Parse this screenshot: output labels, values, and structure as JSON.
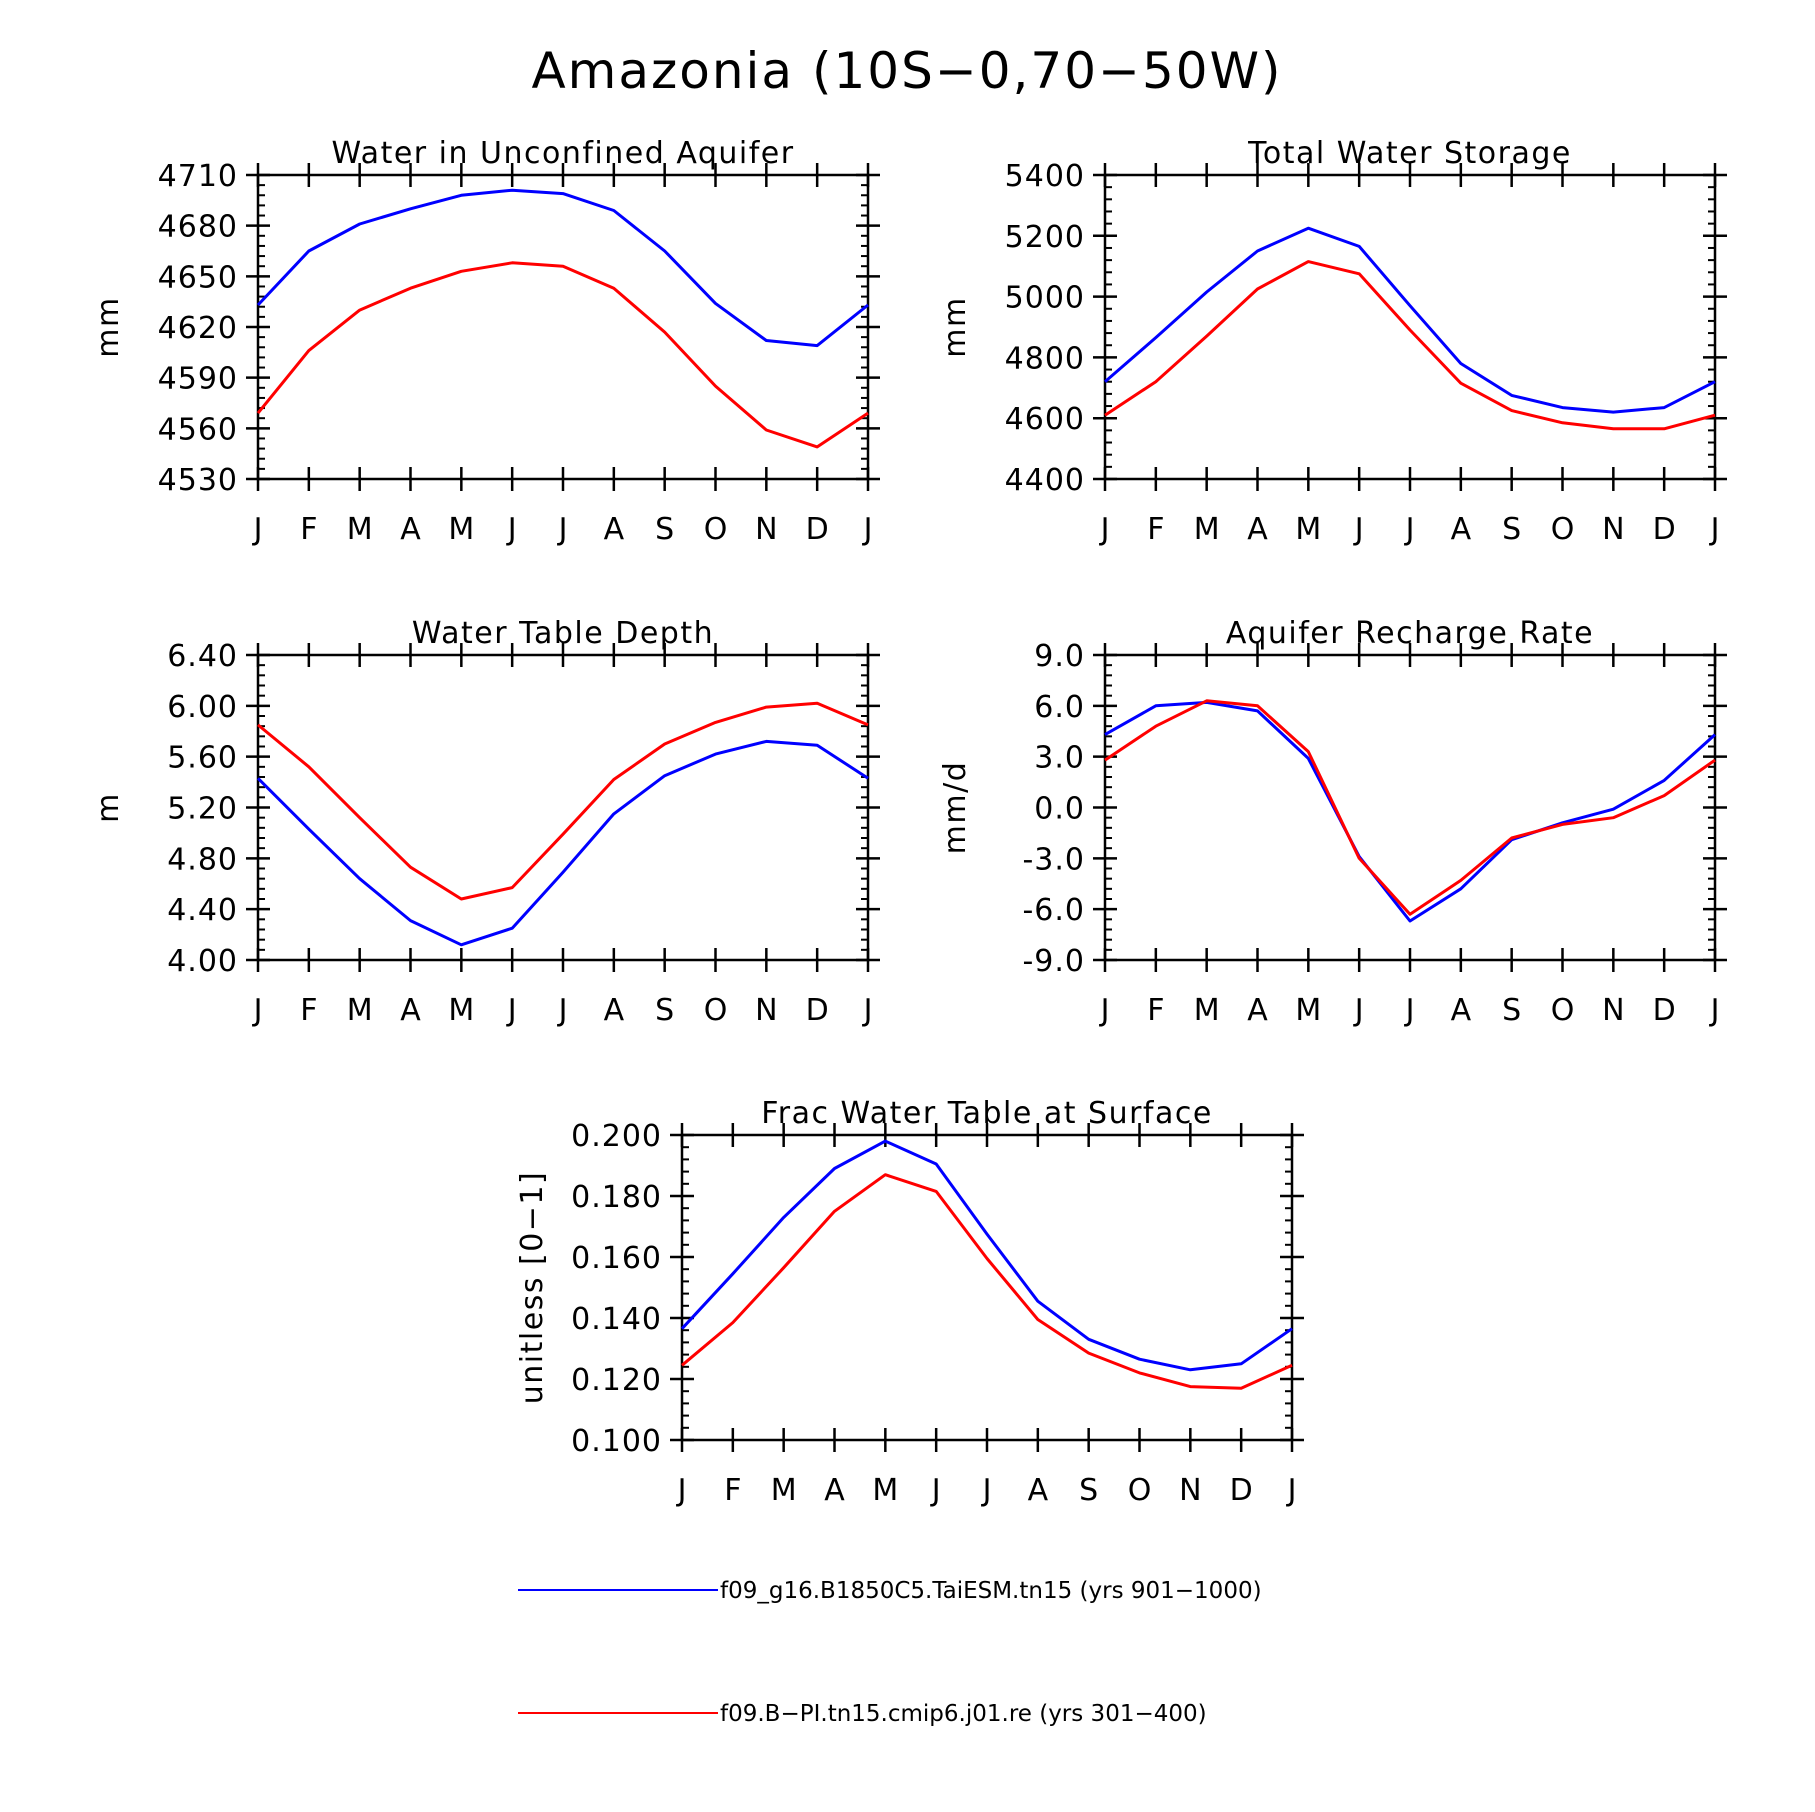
{
  "page_title": "Amazonia (10S−0,70−50W)",
  "colors": {
    "series_1": "#0000ff",
    "series_2": "#ff0000",
    "axis": "#000000"
  },
  "legend": {
    "placement": "bottom-center",
    "entries": [
      {
        "label": "f09_g16.B1850C5.TaiESM.tn15 (yrs 901−1000)",
        "color": "#0000ff"
      },
      {
        "label": "f09.B−PI.tn15.cmip6.j01.re (yrs 301−400)",
        "color": "#ff0000"
      }
    ]
  },
  "chart_data": [
    {
      "type": "line",
      "title": "Water in Unconfined Aquifer",
      "xlabel": "",
      "ylabel": "mm",
      "categories": [
        "J",
        "F",
        "M",
        "A",
        "M",
        "J",
        "J",
        "A",
        "S",
        "O",
        "N",
        "D",
        "J"
      ],
      "ylim": [
        4530,
        4710
      ],
      "yticks": [
        4530,
        4560,
        4590,
        4620,
        4650,
        4680,
        4710
      ],
      "ytick_labels": [
        "4530",
        "4560",
        "4590",
        "4620",
        "4650",
        "4680",
        "4710"
      ],
      "grid": false,
      "series": [
        {
          "color": "#0000ff",
          "values": [
            4633,
            4665,
            4681,
            4690,
            4698,
            4701,
            4699,
            4689,
            4665,
            4634,
            4612,
            4609,
            4633
          ]
        },
        {
          "color": "#ff0000",
          "values": [
            4569,
            4606,
            4630,
            4643,
            4653,
            4658,
            4656,
            4643,
            4617,
            4585,
            4559,
            4549,
            4569
          ]
        }
      ]
    },
    {
      "type": "line",
      "title": "Total Water Storage",
      "xlabel": "",
      "ylabel": "mm",
      "categories": [
        "J",
        "F",
        "M",
        "A",
        "M",
        "J",
        "J",
        "A",
        "S",
        "O",
        "N",
        "D",
        "J"
      ],
      "ylim": [
        4400,
        5400
      ],
      "yticks": [
        4400,
        4600,
        4800,
        5000,
        5200,
        5400
      ],
      "ytick_labels": [
        "4400",
        "4600",
        "4800",
        "5000",
        "5200",
        "5400"
      ],
      "grid": false,
      "series": [
        {
          "color": "#0000ff",
          "values": [
            4720,
            4865,
            5015,
            5150,
            5225,
            5165,
            4970,
            4780,
            4675,
            4635,
            4620,
            4635,
            4720
          ]
        },
        {
          "color": "#ff0000",
          "values": [
            4610,
            4720,
            4870,
            5025,
            5115,
            5075,
            4890,
            4715,
            4625,
            4585,
            4565,
            4565,
            4610
          ]
        }
      ]
    },
    {
      "type": "line",
      "title": "Water Table Depth",
      "xlabel": "",
      "ylabel": "m",
      "categories": [
        "J",
        "F",
        "M",
        "A",
        "M",
        "J",
        "J",
        "A",
        "S",
        "O",
        "N",
        "D",
        "J"
      ],
      "ylim": [
        4.0,
        6.4
      ],
      "yticks": [
        4.0,
        4.4,
        4.8,
        5.2,
        5.6,
        6.0,
        6.4
      ],
      "ytick_labels": [
        "4.00",
        "4.40",
        "4.80",
        "5.20",
        "5.60",
        "6.00",
        "6.40"
      ],
      "grid": false,
      "series": [
        {
          "color": "#0000ff",
          "values": [
            5.43,
            5.03,
            4.64,
            4.31,
            4.12,
            4.25,
            4.69,
            5.15,
            5.45,
            5.62,
            5.72,
            5.69,
            5.43
          ]
        },
        {
          "color": "#ff0000",
          "values": [
            5.85,
            5.52,
            5.12,
            4.73,
            4.48,
            4.57,
            4.99,
            5.42,
            5.7,
            5.87,
            5.99,
            6.02,
            5.85
          ]
        }
      ]
    },
    {
      "type": "line",
      "title": "Aquifer Recharge Rate",
      "xlabel": "",
      "ylabel": "mm/d",
      "categories": [
        "J",
        "F",
        "M",
        "A",
        "M",
        "J",
        "J",
        "A",
        "S",
        "O",
        "N",
        "D",
        "J"
      ],
      "ylim": [
        -9.0,
        9.0
      ],
      "yticks": [
        -9.0,
        -6.0,
        -3.0,
        0.0,
        3.0,
        6.0,
        9.0
      ],
      "ytick_labels": [
        "-9.0",
        "-6.0",
        "-3.0",
        "0.0",
        "3.0",
        "6.0",
        "9.0"
      ],
      "grid": false,
      "series": [
        {
          "color": "#0000ff",
          "values": [
            4.3,
            6.0,
            6.2,
            5.7,
            2.9,
            -2.9,
            -6.7,
            -4.8,
            -1.9,
            -0.9,
            -0.1,
            1.6,
            4.3
          ]
        },
        {
          "color": "#ff0000",
          "values": [
            2.8,
            4.8,
            6.3,
            6.0,
            3.3,
            -3.0,
            -6.3,
            -4.3,
            -1.8,
            -1.0,
            -0.6,
            0.7,
            2.8
          ]
        }
      ]
    },
    {
      "type": "line",
      "title": "Frac Water Table at Surface",
      "xlabel": "",
      "ylabel": "unitless [0−1]",
      "categories": [
        "J",
        "F",
        "M",
        "A",
        "M",
        "J",
        "J",
        "A",
        "S",
        "O",
        "N",
        "D",
        "J"
      ],
      "ylim": [
        0.1,
        0.2
      ],
      "yticks": [
        0.1,
        0.12,
        0.14,
        0.16,
        0.18,
        0.2
      ],
      "ytick_labels": [
        "0.100",
        "0.120",
        "0.140",
        "0.160",
        "0.180",
        "0.200"
      ],
      "grid": false,
      "series": [
        {
          "color": "#0000ff",
          "values": [
            0.1365,
            0.1545,
            0.173,
            0.189,
            0.198,
            0.1905,
            0.1675,
            0.1455,
            0.133,
            0.1265,
            0.123,
            0.125,
            0.1365
          ]
        },
        {
          "color": "#ff0000",
          "values": [
            0.1245,
            0.1385,
            0.1565,
            0.175,
            0.187,
            0.1815,
            0.1595,
            0.1395,
            0.1285,
            0.122,
            0.1175,
            0.117,
            0.1245
          ]
        }
      ]
    }
  ]
}
